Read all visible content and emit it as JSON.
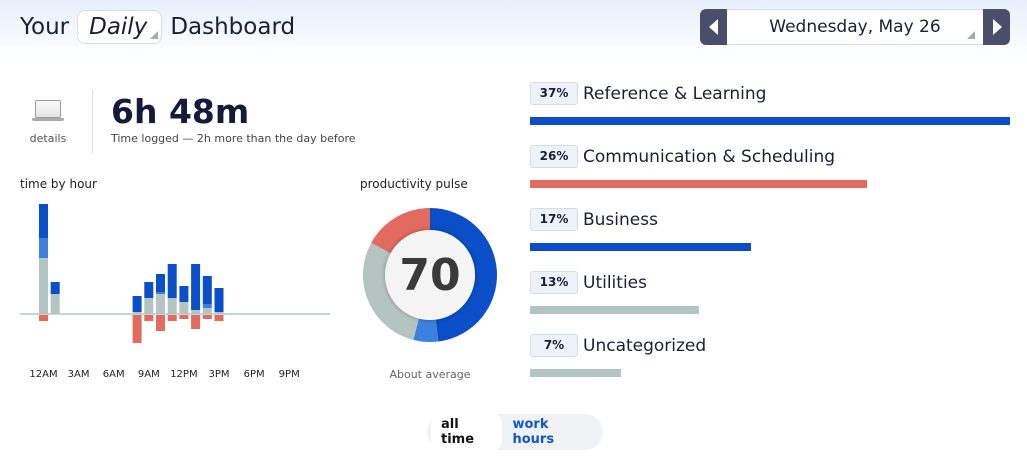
{
  "header": {
    "prefix": "Your",
    "period": "Daily",
    "suffix": "Dashboard",
    "date": "Wednesday, May 26"
  },
  "summary": {
    "details_label": "details",
    "total": "6h 48m",
    "subtitle": "Time logged — 2h more than the day before"
  },
  "colors": {
    "very_productive": "#0a4fc7",
    "productive": "#3d80e0",
    "neutral": "#b4c4c1",
    "distracting": "#e06b5e"
  },
  "chart_data": [
    {
      "type": "bar",
      "title": "time by hour",
      "stacked": true,
      "categories": [
        "12AM",
        "1AM",
        "2AM",
        "3AM",
        "4AM",
        "5AM",
        "6AM",
        "7AM",
        "8AM",
        "9AM",
        "10AM",
        "11AM",
        "12PM",
        "1PM",
        "2PM",
        "3PM",
        "4PM",
        "5PM",
        "6PM",
        "7PM",
        "8PM",
        "9PM",
        "10PM",
        "11PM"
      ],
      "tick_labels": [
        "12AM",
        "3AM",
        "6AM",
        "9AM",
        "12PM",
        "3PM",
        "6PM",
        "9PM"
      ],
      "series": [
        {
          "key": "neutral",
          "values": [
            28,
            10,
            0,
            0,
            0,
            0,
            0,
            0,
            1,
            8,
            10,
            8,
            6,
            2,
            3,
            1,
            0,
            0,
            0,
            0,
            0,
            0,
            0,
            0
          ]
        },
        {
          "key": "productive",
          "values": [
            10,
            0,
            0,
            0,
            0,
            0,
            0,
            0,
            0,
            0,
            1,
            0,
            0,
            0,
            2,
            0,
            0,
            0,
            0,
            0,
            0,
            0,
            0,
            0
          ]
        },
        {
          "key": "very_productive",
          "values": [
            17,
            6,
            0,
            0,
            0,
            0,
            0,
            0,
            8,
            8,
            9,
            17,
            8,
            23,
            14,
            12,
            0,
            0,
            0,
            0,
            0,
            0,
            0,
            0
          ]
        },
        {
          "key": "distracting",
          "values": [
            -3,
            0,
            0,
            0,
            0,
            0,
            0,
            0,
            -14,
            -3,
            -8,
            -3,
            -2,
            -7,
            -2,
            -3,
            0,
            0,
            0,
            0,
            0,
            0,
            0,
            0
          ]
        }
      ]
    },
    {
      "type": "pie",
      "title": "productivity pulse",
      "score": "70",
      "caption": "About average",
      "slices": [
        {
          "key": "very_productive",
          "value": 48
        },
        {
          "key": "productive",
          "value": 6
        },
        {
          "key": "neutral",
          "value": 29
        },
        {
          "key": "distracting",
          "value": 17
        }
      ]
    }
  ],
  "categories": [
    {
      "pct": "37%",
      "name": "Reference & Learning",
      "value": 37,
      "color": "#0a4fc7"
    },
    {
      "pct": "26%",
      "name": "Communication & Scheduling",
      "value": 26,
      "color": "#e06b5e"
    },
    {
      "pct": "17%",
      "name": "Business",
      "value": 17,
      "color": "#0a4fc7"
    },
    {
      "pct": "13%",
      "name": "Utilities",
      "value": 13,
      "color": "#b4c4c1"
    },
    {
      "pct": "7%",
      "name": "Uncategorized",
      "value": 7,
      "color": "#b4c4c1"
    }
  ],
  "toggle": {
    "all_time": "all time",
    "work_hours": "work hours"
  }
}
